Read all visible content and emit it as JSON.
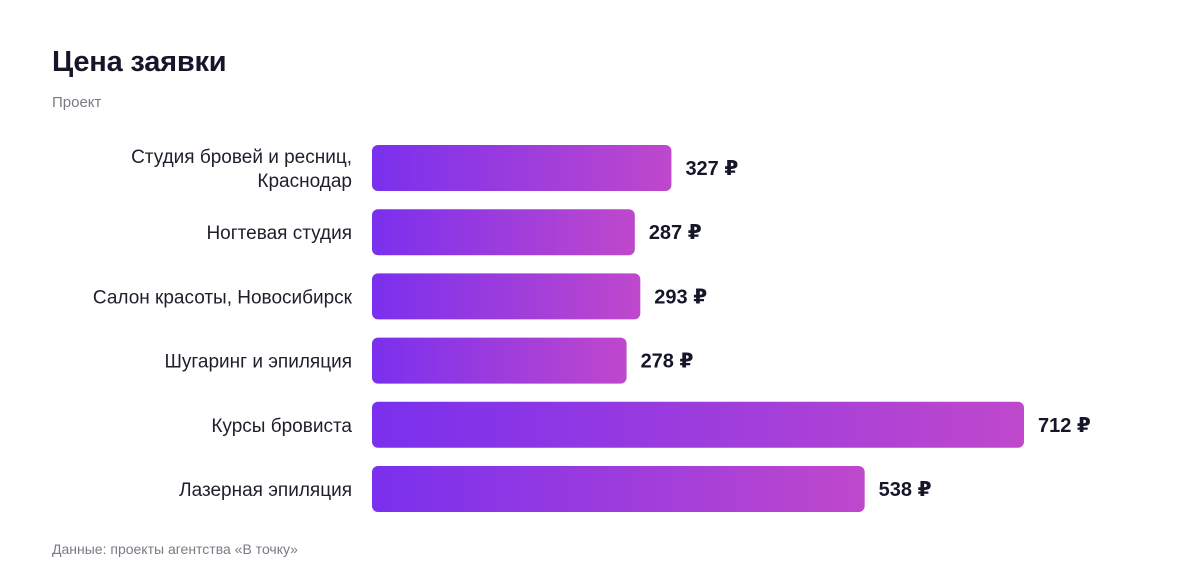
{
  "header": {
    "title": "Цена заявки",
    "subtitle": "Проект"
  },
  "footer": {
    "source": "Данные: проекты агентства «В точку»"
  },
  "colors": {
    "bar_start": "#7a30ee",
    "bar_end": "#bf48cc"
  },
  "chart_data": {
    "type": "bar",
    "orientation": "horizontal",
    "title": "Цена заявки",
    "subtitle": "Проект",
    "categories": [
      [
        "Студия бровей и ресниц,",
        "Краснодар"
      ],
      [
        "Ногтевая студия"
      ],
      [
        "Салон красоты, Новосибирск"
      ],
      [
        "Шугаринг и эпиляция"
      ],
      [
        "Курсы бровиста"
      ],
      [
        "Лазерная эпиляция"
      ]
    ],
    "values": [
      327,
      287,
      293,
      278,
      712,
      538
    ],
    "value_labels": [
      "327 ₽",
      "287 ₽",
      "293 ₽",
      "278 ₽",
      "712 ₽",
      "538 ₽"
    ],
    "grid": false,
    "legend": "none"
  }
}
